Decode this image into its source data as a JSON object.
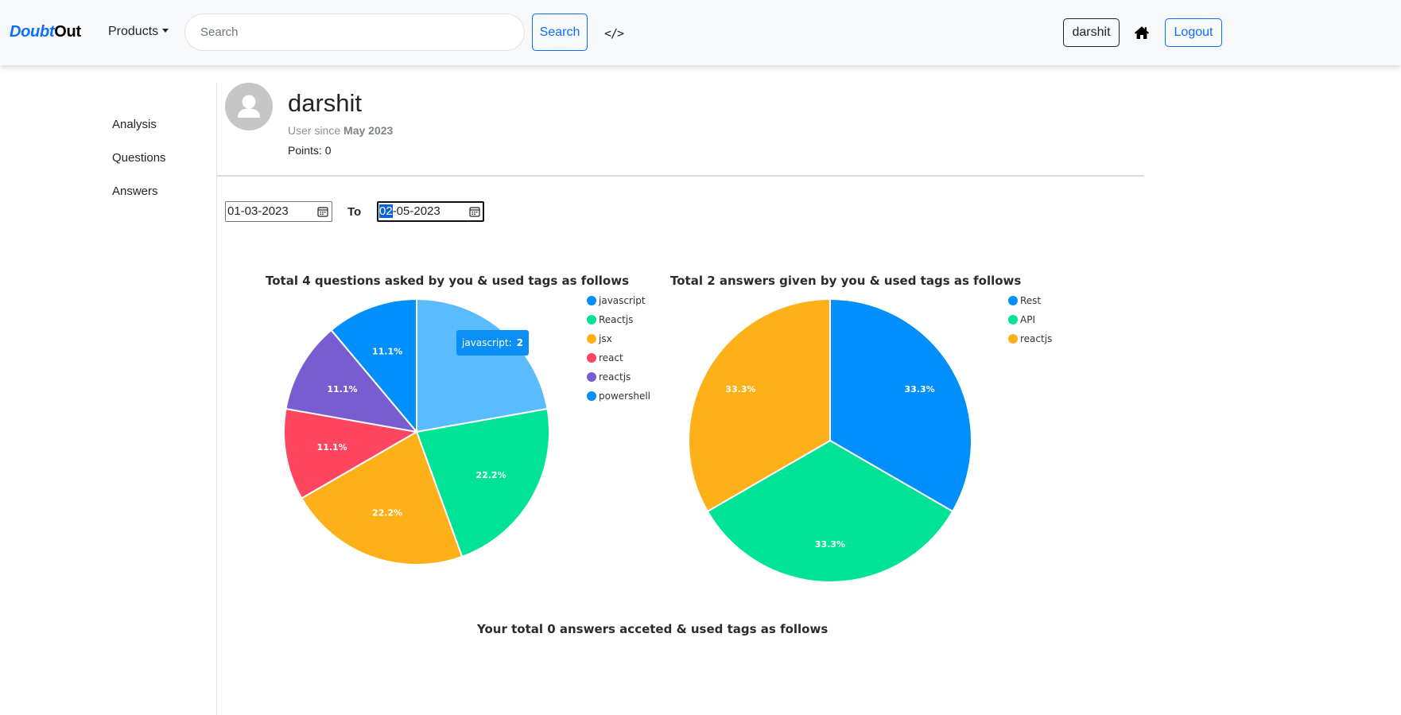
{
  "nav": {
    "brand_part1": "Doubt",
    "brand_part2": "Out",
    "products_label": "Products",
    "search_placeholder": "Search",
    "search_button": "Search",
    "code_icon_glyph": "</>",
    "user_button": "darshit",
    "logout_button": "Logout"
  },
  "sidebar": {
    "items": [
      {
        "label": "Analysis"
      },
      {
        "label": "Questions"
      },
      {
        "label": "Answers"
      }
    ]
  },
  "profile": {
    "name": "darshit",
    "since_prefix": "User since",
    "since_date": "May 2023",
    "points": "Points: 0"
  },
  "filters": {
    "from_date": "01-03-2023",
    "to_label": "To",
    "to_date_selected": "02",
    "to_date_rest": "-05-2023"
  },
  "colors": {
    "accent": "#0d6efd",
    "blue": "#008ffb",
    "green": "#00e396",
    "orange": "#feb019",
    "red": "#ff4560",
    "purple": "#775dd0"
  },
  "chart_data": [
    {
      "type": "pie",
      "title": "Total 4 questions asked by you & used tags as follows",
      "categories": [
        "javascript",
        "Reactjs",
        "jsx",
        "react",
        "reactjs",
        "powershell"
      ],
      "values": [
        2,
        2,
        2,
        1,
        1,
        1
      ],
      "percent_labels": [
        "",
        "22.2%",
        "22.2%",
        "11.1%",
        "11.1%",
        "11.1%"
      ],
      "colors": [
        "#5bbbff",
        "#00e396",
        "#feb019",
        "#ff4560",
        "#775dd0",
        "#008ffb"
      ],
      "legend_colors": [
        "#008ffb",
        "#00e396",
        "#feb019",
        "#ff4560",
        "#775dd0",
        "#008ffb"
      ],
      "legend_position": "right",
      "tooltip": {
        "label": "javascript:",
        "value": "2"
      }
    },
    {
      "type": "pie",
      "title": "Total 2 answers given by you & used tags as follows",
      "categories": [
        "Rest",
        "API",
        "reactjs"
      ],
      "values": [
        1,
        1,
        1
      ],
      "percent_labels": [
        "33.3%",
        "33.3%",
        "33.3%"
      ],
      "colors": [
        "#008ffb",
        "#00e396",
        "#feb019"
      ],
      "legend_colors": [
        "#008ffb",
        "#00e396",
        "#feb019"
      ],
      "legend_position": "right"
    },
    {
      "type": "pie",
      "title": "Your total 0 answers acceted & used tags as follows",
      "categories": [],
      "values": []
    }
  ]
}
